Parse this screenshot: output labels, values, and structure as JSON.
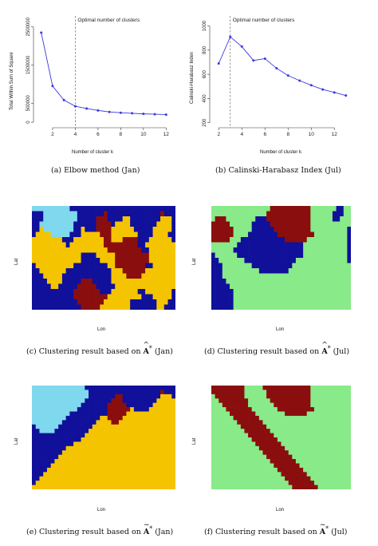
{
  "chart_data": [
    {
      "type": "line",
      "xlabel": "Number of cluster k",
      "ylabel": "Total Within Sum of Square",
      "x": [
        1,
        2,
        3,
        4,
        5,
        6,
        7,
        8,
        9,
        10,
        11,
        12
      ],
      "y": [
        2350000,
        950000,
        580000,
        420000,
        360000,
        310000,
        270000,
        250000,
        235000,
        220000,
        210000,
        200000
      ],
      "xticks": [
        "2",
        "4",
        "6",
        "8",
        "10",
        "12"
      ],
      "xtick_values": [
        2,
        4,
        6,
        8,
        10,
        12
      ],
      "yticks": [
        "0",
        "500000",
        "1500000",
        "2500000"
      ],
      "ytick_values": [
        0,
        500000,
        1500000,
        2500000
      ],
      "xlim": [
        0.6,
        12.4
      ],
      "ylim": [
        -60000,
        2620000
      ],
      "vline": 4,
      "annotation": "Optimal number of clusters",
      "caption": "(a) Elbow method (Jan)",
      "colors": {
        "line": "#3b3bdc",
        "vline": "#666666"
      }
    },
    {
      "type": "line",
      "xlabel": "Number of cluster k",
      "ylabel": "Calinski-Harabasz Index",
      "x": [
        2,
        3,
        4,
        5,
        6,
        7,
        8,
        9,
        10,
        11,
        12,
        13
      ],
      "y": [
        690,
        910,
        830,
        715,
        730,
        650,
        590,
        548,
        510,
        475,
        450,
        425
      ],
      "xticks": [
        "2",
        "4",
        "6",
        "8",
        "10",
        "12"
      ],
      "xtick_values": [
        2,
        4,
        6,
        8,
        10,
        12
      ],
      "yticks": [
        "200",
        "400",
        "600",
        "800",
        "1000"
      ],
      "ytick_values": [
        200,
        400,
        600,
        800,
        1000
      ],
      "xlim": [
        1.5,
        13.5
      ],
      "ylim": [
        185,
        1030
      ],
      "vline": 3,
      "annotation": "Optimal number of clusters",
      "caption": "(b) Calinski-Harabasz Index (Jul)",
      "colors": {
        "line": "#3b3bdc",
        "vline": "#666666"
      }
    },
    {
      "type": "heatmap",
      "xlabel": "Lon",
      "ylabel": "Lat",
      "caption_prefix": "(c) Clustering result based on",
      "caption_symbol": "A",
      "caption_suffix": "(Jan)",
      "accent": "hat",
      "palette": [
        "#10109a",
        "#7fd8ee",
        "#f5c400",
        "#8a0e0e"
      ],
      "grid": [
        "11111111110000000000000000000000000000",
        "00011111111100000003000000000000003000",
        "00011111111100000333000022000000002220",
        "00111111111000000333302222000000022220",
        "00211111111002000333322222200000222220",
        "02222111110002222233322222220000222200",
        "22222222000222222223322233330002222220",
        "22222222202222222223333333330022222222",
        "22222222222222222222333333333002222222",
        "22222222222220000222223333333332222222",
        "22222222222220000022223333333332222222",
        "02222222222000000000223333333300222222",
        "00222222200000000000022233333322222222",
        "00022222000000000000022223333222222222",
        "00002222000003330000022222222222222222",
        "00000220000033333000002222222222222222",
        "00000000000333333300022222220022222220",
        "00000000000333333333222222222000222220",
        "00000000000033333332222222000000022200",
        "00000000000003333322222222000000022000"
      ]
    },
    {
      "type": "heatmap",
      "xlabel": "Lon",
      "ylabel": "Lat",
      "caption_prefix": "(d) Clustering result based on",
      "caption_symbol": "A",
      "caption_suffix": "(Jul)",
      "accent": "hat",
      "palette": [
        "#10109a",
        "#88ea88",
        "#8a0e0e"
      ],
      "grid": [
        "11111111111111112222222222211111110011",
        "11111111111111122222222222211111100011",
        "12221111111100022222222222211111100111",
        "22222111111000002222222222211111111111",
        "22222211111000000222222222211111111110",
        "22222211110000000022222222221111111110",
        "22222111000000000000222222111111111110",
        "11111110000000000000000001111111111110",
        "11111100000000000000000001111111111110",
        "01111110000000000000000001111111111110",
        "00111111100000000000000111111111111110",
        "00011111111000000000001111111111111111",
        "00011111111110000000011111111111111111",
        "00011111111111111111111111111111111111",
        "00001111111111111111111111111111111111",
        "00000111111111111111111111111111111111",
        "00000011111111111111111111111111111111",
        "00000011111111111111111111111111111111",
        "00000011111111111111111111111111111111",
        "00000011111111111111111111111111111111"
      ]
    },
    {
      "type": "heatmap",
      "xlabel": "Lon",
      "ylabel": "Lat",
      "caption_prefix": "(e) Clustering result based on",
      "caption_symbol": "A",
      "caption_suffix": "(Jan)",
      "accent": "tilde",
      "palette": [
        "#10109a",
        "#7fd8ee",
        "#f5c400",
        "#8a0e0e"
      ],
      "grid": [
        "11111111111111000000000000000000000000",
        "11111111111111100000000000000000003000",
        "11111111111111100000003300000000002220",
        "11111111111111000000033300000000022222",
        "11111111111110000000333330000000222222",
        "11111111111100000000333333200002222222",
        "11111111110000000000333332222222222222",
        "11111111100000000022333322222222222222",
        "11111111000000000222233222222222222222",
        "01111110000000002222222222222222222222",
        "00111100000000022222222222222222222222",
        "00000000000000222222222222222222222222",
        "00000000000002222222222222222222222222",
        "00000000000222222222222222222222222222",
        "00000000022222222222222222222222222222",
        "00000000222222222222222222222222222222",
        "00000002222222222222222222222222222222",
        "00000022222222222222222222222222222222",
        "00000222222222222222222222222222222222",
        "00002222222222222222222222222222222222",
        "00022222222222222222222222222222222222",
        "00222222222222222222222222222222222222",
        "02222222222222222222222222222222222222",
        "22222222222222222222222222222222222222"
      ]
    },
    {
      "type": "heatmap",
      "xlabel": "Lon",
      "ylabel": "Lat",
      "caption_prefix": "(f) Clustering result based on",
      "caption_symbol": "A",
      "caption_suffix": "(Jul)",
      "accent": "tilde",
      "palette": [
        "#10109a",
        "#88ea88",
        "#8a0e0e"
      ],
      "grid": [
        "22222222211111222222222222211111111111",
        "22222222211111122222222222211111111111",
        "12222222211111122222222222211111111111",
        "11222222221111112222222222211111111111",
        "11122222221111111222222222211111111111",
        "11112222222111111122222222221111111111",
        "11111222222211111111222222111111111111",
        "11111122222221111111111111111111111111",
        "11111112222222111111111111111111111111",
        "11111111222222211111111111111111111111",
        "11111111122222221111111111111111111111",
        "11111111112222222111111111111111111111",
        "11111111111222222211111111111111111111",
        "11111111111122222221111111111111111111",
        "11111111111112222222111111111111111111",
        "11111111111111222222211111111111111111",
        "11111111111111122222221111111111111111",
        "11111111111111112222222111111111111111",
        "11111111111111111222222211111111111111",
        "11111111111111111122222221111111111111",
        "11111111111111111112222222111111111111",
        "11111111111111111111222222211111111111",
        "11111111111111111111122222221111111111",
        "11111111111111111111112222222111111111"
      ]
    }
  ]
}
